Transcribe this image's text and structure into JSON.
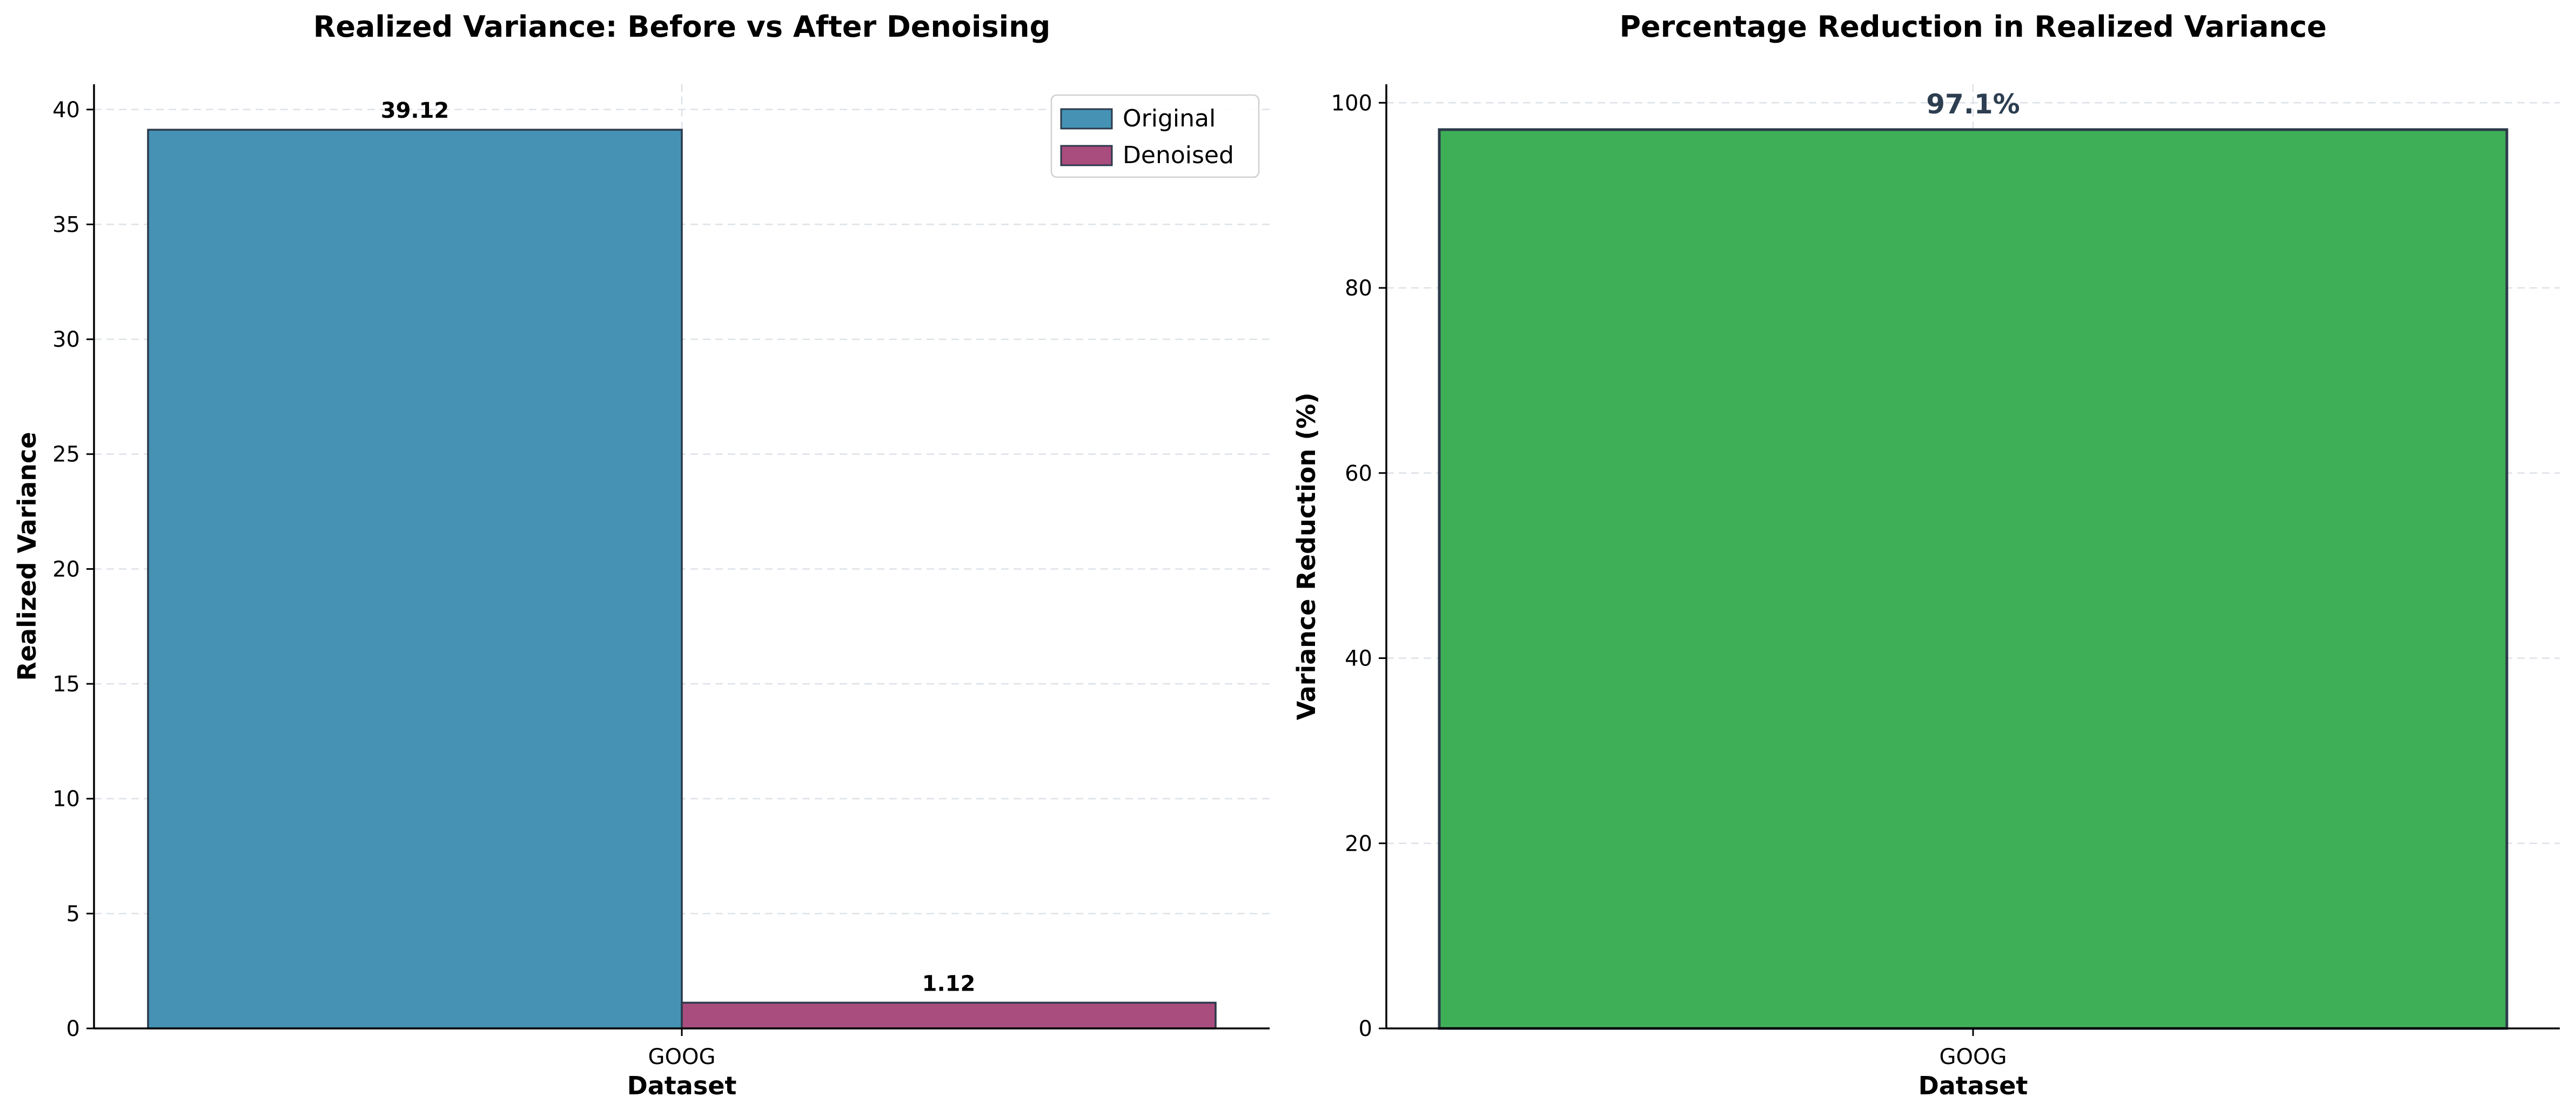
{
  "chart_data": [
    {
      "type": "bar",
      "title": "Realized Variance: Before vs After Denoising",
      "xlabel": "Dataset",
      "ylabel": "Realized Variance",
      "categories": [
        "GOOG"
      ],
      "series": [
        {
          "name": "Original",
          "values": [
            39.12
          ],
          "value_labels": [
            "39.12"
          ],
          "color": "#4592b5"
        },
        {
          "name": "Denoised",
          "values": [
            1.12
          ],
          "value_labels": [
            "1.12"
          ],
          "color": "#a94c7e"
        }
      ],
      "ylim": [
        0,
        41.1
      ],
      "yticks": [
        0,
        5,
        10,
        15,
        20,
        25,
        30,
        35,
        40
      ],
      "ytick_labels": [
        "0",
        "5",
        "10",
        "15",
        "20",
        "25",
        "30",
        "35",
        "40"
      ],
      "grid": true,
      "legend": "top-right"
    },
    {
      "type": "bar",
      "title": "Percentage Reduction in Realized Variance",
      "xlabel": "Dataset",
      "ylabel": "Variance Reduction (%)",
      "categories": [
        "GOOG"
      ],
      "series": [
        {
          "values": [
            97.1
          ],
          "value_labels": [
            "97.1%"
          ],
          "color": "#3faf57"
        }
      ],
      "ylim": [
        0,
        102
      ],
      "yticks": [
        0,
        20,
        40,
        60,
        80,
        100
      ],
      "ytick_labels": [
        "0",
        "20",
        "40",
        "60",
        "80",
        "100"
      ],
      "grid": true,
      "value_label_color": "#2c3e50"
    }
  ]
}
